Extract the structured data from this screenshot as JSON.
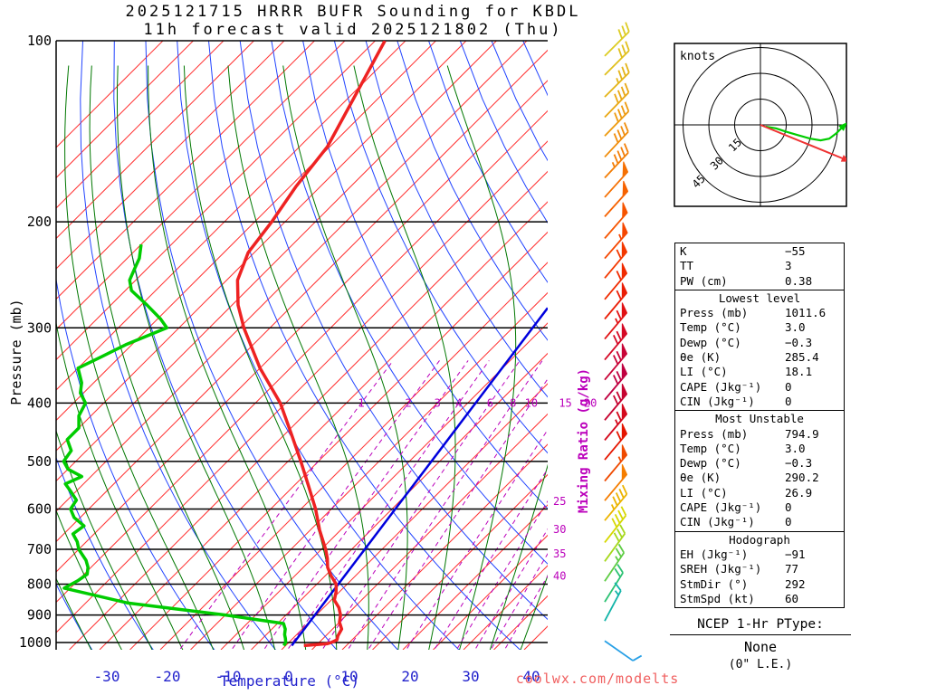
{
  "title": {
    "line1": "2025121715 HRRR BUFR Sounding for KBDL",
    "line2": "11h forecast valid 2025121802 (Thu)"
  },
  "watermark": "coolwx.com/modelts",
  "axes": {
    "pressure_label": "Pressure (mb)",
    "temperature_label": "Temperature (°C)",
    "mixing_ratio_label": "Mixing Ratio (g/kg)",
    "pressure_ticks": [
      100,
      200,
      300,
      400,
      500,
      600,
      700,
      800,
      900,
      1000
    ],
    "temperature_ticks": [
      -30,
      -20,
      -10,
      0,
      10,
      20,
      30,
      40
    ]
  },
  "chart_data": {
    "type": "skewt-log-p",
    "pressure_range": [
      100,
      1050
    ],
    "isotherms": {
      "color": "#ff3333",
      "min": -120,
      "max": 45,
      "step": 5
    },
    "dry_adiabats": {
      "color": "#2244ff",
      "theta_min": 230,
      "theta_max": 440,
      "step": 10
    },
    "moist_adiabats": {
      "color": "#007700",
      "t0_min": -30,
      "t0_max": 40,
      "step": 5
    },
    "mixing_ratio_lines": {
      "color": "#bb00bb",
      "values": [
        1,
        2,
        3,
        4,
        6,
        8,
        10,
        15,
        20,
        25,
        30,
        35,
        40
      ],
      "inline_labels": [
        1,
        2,
        3,
        4,
        6,
        8,
        10,
        15,
        20
      ],
      "edge_labels": [
        25,
        30,
        35,
        40
      ]
    },
    "temperature_profile": {
      "color": "#ee2222",
      "points": [
        [
          1012,
          3.0
        ],
        [
          1005,
          6.5
        ],
        [
          1000,
          7.0
        ],
        [
          990,
          7.5
        ],
        [
          975,
          7.0
        ],
        [
          950,
          6.5
        ],
        [
          925,
          5.0
        ],
        [
          900,
          4.0
        ],
        [
          875,
          2.5
        ],
        [
          850,
          0.5
        ],
        [
          825,
          -0.5
        ],
        [
          800,
          -1.8
        ],
        [
          775,
          -4.0
        ],
        [
          750,
          -6.0
        ],
        [
          725,
          -7.5
        ],
        [
          700,
          -9.3
        ],
        [
          650,
          -13.5
        ],
        [
          600,
          -17.6
        ],
        [
          550,
          -22.5
        ],
        [
          500,
          -27.9
        ],
        [
          450,
          -34.0
        ],
        [
          400,
          -40.9
        ],
        [
          350,
          -50.0
        ],
        [
          300,
          -59.3
        ],
        [
          275,
          -64.0
        ],
        [
          250,
          -68.2
        ],
        [
          225,
          -71.0
        ],
        [
          200,
          -72.2
        ],
        [
          175,
          -74.0
        ],
        [
          150,
          -75.4
        ],
        [
          125,
          -79.0
        ],
        [
          100,
          -83.4
        ]
      ]
    },
    "dewpoint_profile": {
      "color": "#00cc00",
      "points": [
        [
          1012,
          -0.3
        ],
        [
          1000,
          -0.5
        ],
        [
          985,
          -1.2
        ],
        [
          970,
          -2.0
        ],
        [
          950,
          -2.8
        ],
        [
          930,
          -4.0
        ],
        [
          900,
          -15
        ],
        [
          860,
          -33
        ],
        [
          812,
          -46
        ],
        [
          790,
          -45
        ],
        [
          770,
          -44.5
        ],
        [
          750,
          -45.5
        ],
        [
          730,
          -47
        ],
        [
          700,
          -50
        ],
        [
          680,
          -51.5
        ],
        [
          660,
          -53.5
        ],
        [
          640,
          -53
        ],
        [
          620,
          -56
        ],
        [
          600,
          -58
        ],
        [
          580,
          -58.5
        ],
        [
          560,
          -61
        ],
        [
          545,
          -63
        ],
        [
          530,
          -61.5
        ],
        [
          515,
          -65
        ],
        [
          500,
          -67
        ],
        [
          480,
          -67.5
        ],
        [
          460,
          -70
        ],
        [
          440,
          -70
        ],
        [
          420,
          -72
        ],
        [
          400,
          -73
        ],
        [
          385,
          -75.5
        ],
        [
          370,
          -77
        ],
        [
          350,
          -80
        ],
        [
          335,
          -78
        ],
        [
          320,
          -76
        ],
        [
          300,
          -72
        ],
        [
          290,
          -74.5
        ],
        [
          275,
          -79
        ],
        [
          260,
          -84
        ],
        [
          250,
          -86
        ],
        [
          240,
          -87
        ],
        [
          230,
          -88
        ],
        [
          218,
          -90
        ]
      ]
    },
    "parcel_mixing_line": {
      "color": "#0000dd",
      "points": [
        [
          1012,
          1.0
        ],
        [
          278,
          -12.5
        ]
      ]
    },
    "wind_barbs": {
      "levels": [
        {
          "p": 106,
          "spd": 30,
          "ang": 45,
          "c": "#ddcc22"
        },
        {
          "p": 114,
          "spd": 32,
          "ang": 45,
          "c": "#e0c01d"
        },
        {
          "p": 124,
          "spd": 35,
          "ang": 45,
          "c": "#e4b418"
        },
        {
          "p": 134,
          "spd": 38,
          "ang": 46,
          "c": "#e9a713"
        },
        {
          "p": 144,
          "spd": 40,
          "ang": 46,
          "c": "#ed9a0e"
        },
        {
          "p": 156,
          "spd": 42,
          "ang": 47,
          "c": "#f08c0a"
        },
        {
          "p": 169,
          "spd": 45,
          "ang": 47,
          "c": "#f37e06"
        },
        {
          "p": 182,
          "spd": 48,
          "ang": 48,
          "c": "#f57003"
        },
        {
          "p": 196,
          "spd": 50,
          "ang": 48,
          "c": "#f66201"
        },
        {
          "p": 213,
          "spd": 52,
          "ang": 49,
          "c": "#f65400"
        },
        {
          "p": 230,
          "spd": 55,
          "ang": 49,
          "c": "#f54600"
        },
        {
          "p": 248,
          "spd": 58,
          "ang": 50,
          "c": "#f33800"
        },
        {
          "p": 269,
          "spd": 60,
          "ang": 50,
          "c": "#f02a00"
        },
        {
          "p": 290,
          "spd": 62,
          "ang": 50,
          "c": "#ea1d06"
        },
        {
          "p": 313,
          "spd": 65,
          "ang": 50,
          "c": "#e11114"
        },
        {
          "p": 339,
          "spd": 68,
          "ang": 50,
          "c": "#d50825"
        },
        {
          "p": 366,
          "spd": 70,
          "ang": 50,
          "c": "#c80336"
        },
        {
          "p": 395,
          "spd": 72,
          "ang": 50,
          "c": "#c00040"
        },
        {
          "p": 427,
          "spd": 70,
          "ang": 50,
          "c": "#c60330"
        },
        {
          "p": 461,
          "spd": 65,
          "ang": 50,
          "c": "#d4081c"
        },
        {
          "p": 497,
          "spd": 60,
          "ang": 50,
          "c": "#e51500"
        },
        {
          "p": 539,
          "spd": 55,
          "ang": 50,
          "c": "#ef4a00"
        },
        {
          "p": 581,
          "spd": 50,
          "ang": 50,
          "c": "#f57d00"
        },
        {
          "p": 627,
          "spd": 45,
          "ang": 50,
          "c": "#ecb400"
        },
        {
          "p": 682,
          "spd": 40,
          "ang": 52,
          "c": "#d6d800"
        },
        {
          "p": 733,
          "spd": 32,
          "ang": 54,
          "c": "#a6d81c"
        },
        {
          "p": 791,
          "spd": 25,
          "ang": 56,
          "c": "#5ecc44"
        },
        {
          "p": 856,
          "spd": 20,
          "ang": 58,
          "c": "#2cc273"
        },
        {
          "p": 921,
          "spd": 15,
          "ang": 62,
          "c": "#12b4a8"
        },
        {
          "p": 994,
          "spd": 10,
          "ang": -35,
          "c": "#28a0e6"
        }
      ]
    },
    "hodograph": {
      "unit_label": "knots",
      "rings_kt": [
        15,
        30,
        45
      ],
      "ring_labels": [
        "15",
        "30",
        "45"
      ],
      "trace_color": "#00cc00",
      "storm_color": "#ee3333",
      "trace_kt": [
        [
          3,
          -1
        ],
        [
          9,
          -2
        ],
        [
          15,
          -4
        ],
        [
          22,
          -6
        ],
        [
          29,
          -8
        ],
        [
          35,
          -9
        ],
        [
          40,
          -8
        ],
        [
          44,
          -5
        ],
        [
          48,
          -1
        ]
      ],
      "storm_vector_kt": [
        49,
        -20
      ]
    }
  },
  "stats": {
    "sections": [
      {
        "title": "",
        "rows": [
          [
            "K",
            "−55"
          ],
          [
            "TT",
            "3"
          ],
          [
            "PW (cm)",
            "0.38"
          ]
        ]
      },
      {
        "title": "Lowest level",
        "rows": [
          [
            "Press (mb)",
            "1011.6"
          ],
          [
            "Temp (°C)",
            "3.0"
          ],
          [
            "Dewp (°C)",
            "−0.3"
          ],
          [
            "θe (K)",
            "285.4"
          ],
          [
            "LI (°C)",
            "18.1"
          ],
          [
            "CAPE (Jkg⁻¹)",
            "0"
          ],
          [
            "CIN (Jkg⁻¹)",
            "0"
          ]
        ]
      },
      {
        "title": "Most Unstable",
        "rows": [
          [
            "Press (mb)",
            "794.9"
          ],
          [
            "Temp (°C)",
            "3.0"
          ],
          [
            "Dewp (°C)",
            "−0.3"
          ],
          [
            "θe (K)",
            "290.2"
          ],
          [
            "LI (°C)",
            "26.9"
          ],
          [
            "CAPE (Jkg⁻¹)",
            "0"
          ],
          [
            "CIN (Jkg⁻¹)",
            "0"
          ]
        ]
      },
      {
        "title": "Hodograph",
        "rows": [
          [
            "EH (Jkg⁻¹)",
            "−91"
          ],
          [
            "SREH (Jkg⁻¹)",
            "77"
          ],
          [
            "",
            ""
          ],
          [
            "StmDir (°)",
            "292"
          ],
          [
            "StmSpd (kt)",
            "60"
          ]
        ]
      }
    ]
  },
  "ptype": {
    "title": "NCEP 1-Hr PType:",
    "value": "None",
    "note": "(0\" L.E.)"
  }
}
